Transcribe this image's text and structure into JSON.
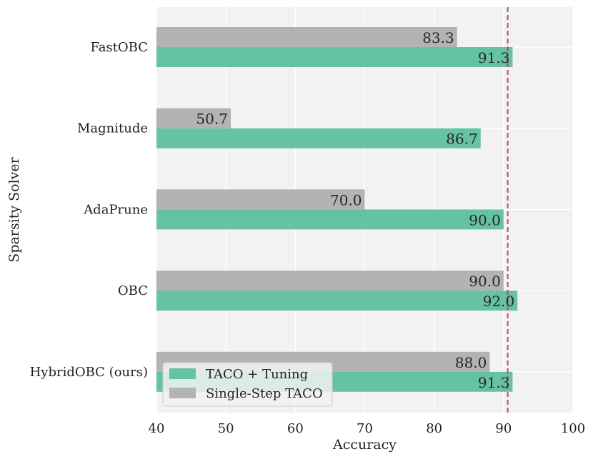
{
  "chart_data": {
    "type": "bar",
    "orientation": "horizontal",
    "categories": [
      "FastOBC",
      "Magnitude",
      "AdaPrune",
      "OBC",
      "HybridOBC (ours)"
    ],
    "series": [
      {
        "name": "TACO + Tuning",
        "values": [
          91.3,
          86.7,
          90.0,
          92.0,
          91.3
        ],
        "color": "#66c2a5"
      },
      {
        "name": "Single-Step TACO",
        "values": [
          83.3,
          50.7,
          70.0,
          90.0,
          88.0
        ],
        "color": "#b3b3b3"
      }
    ],
    "data_labels": [
      [
        "91.3",
        "86.7",
        "90.0",
        "92.0",
        "91.3"
      ],
      [
        "83.3",
        "50.7",
        "70.0",
        "90.0",
        "88.0"
      ]
    ],
    "xlabel": "Accuracy",
    "ylabel": "Sparsity Solver",
    "xlim": [
      40,
      100
    ],
    "xticks": [
      40,
      50,
      60,
      70,
      80,
      90,
      100
    ],
    "xtick_labels": [
      "40",
      "50",
      "60",
      "70",
      "80",
      "90",
      "100"
    ],
    "reference_line": {
      "x": 90.6,
      "color": "#c44e52",
      "style": "dashed"
    },
    "grid": true,
    "background": "#f2f2f2",
    "legend_position": "lower-left"
  }
}
